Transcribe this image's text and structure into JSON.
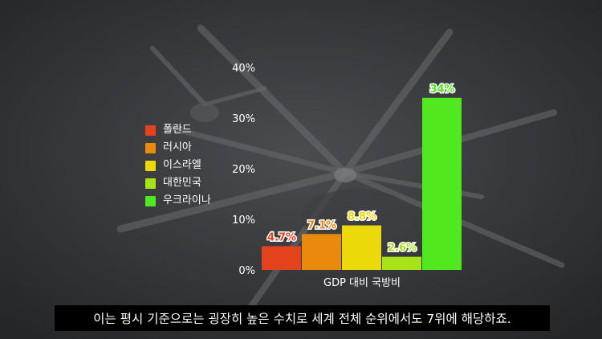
{
  "chart_data": {
    "type": "bar",
    "categories": [
      "폴란드",
      "러시아",
      "이스라엘",
      "대한민국",
      "우크라이나"
    ],
    "values": [
      4.7,
      7.1,
      8.8,
      2.6,
      34
    ],
    "value_labels": [
      "4.7%",
      "7.1%",
      "8.8%",
      "2.6%",
      "34%"
    ],
    "colors": [
      "#e4411d",
      "#ea8a0c",
      "#ecd90a",
      "#a8e317",
      "#52e81f"
    ],
    "xlabel": "GDP 대비 국방비",
    "ylim": [
      0,
      40
    ],
    "ticks": [
      "0%",
      "10%",
      "20%",
      "30%",
      "40%"
    ],
    "legend_position": "left",
    "grid": false
  },
  "subtitle": "이는 평시 기준으로는 굉장히 높은 수치로 세계 전체 순위에서도 7위에 해당하죠."
}
